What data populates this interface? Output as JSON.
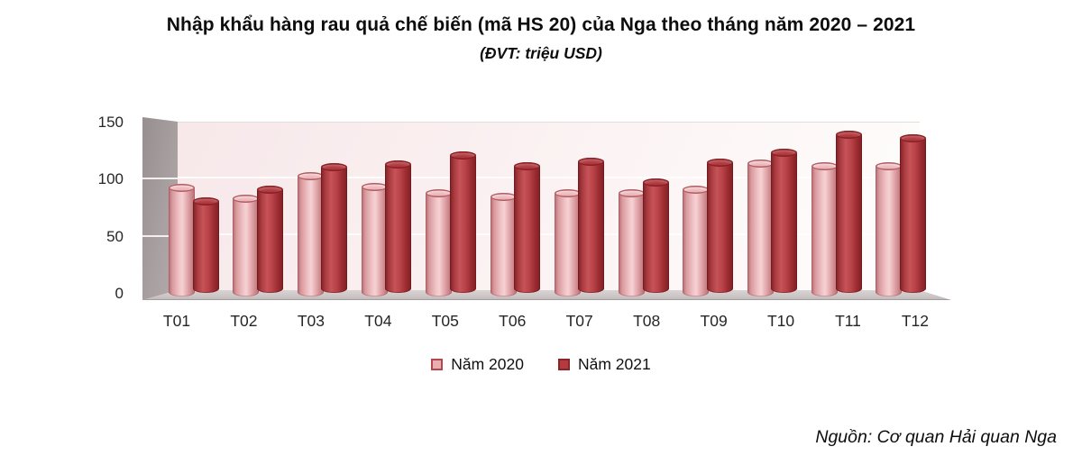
{
  "title": "Nhập khẩu hàng rau quả chế biến (mã HS 20) của Nga theo tháng năm 2020 – 2021",
  "subtitle": "(ĐVT: triệu USD)",
  "source": "Nguồn: Cơ quan Hải quan Nga",
  "colors": {
    "series_2020": "#e9aeb2",
    "series_2021": "#b23b40",
    "side_wall": "#a49c9d",
    "floor": "#ccc6c6",
    "plot_background": "#f9edee"
  },
  "chart_data": {
    "type": "bar",
    "style": "3d-cylinder",
    "title": "Nhập khẩu hàng rau quả chế biến (mã HS 20) của Nga theo tháng năm 2020 – 2021",
    "unit_label": "(ĐVT: triệu USD)",
    "categories": [
      "T01",
      "T02",
      "T03",
      "T04",
      "T05",
      "T06",
      "T07",
      "T08",
      "T09",
      "T10",
      "T11",
      "T12"
    ],
    "series": [
      {
        "name": "Năm 2020",
        "color": "#e9aeb2",
        "values": [
          94,
          85,
          104,
          95,
          89,
          86,
          89,
          89,
          92,
          115,
          112,
          112
        ]
      },
      {
        "name": "Năm 2021",
        "color": "#b23b40",
        "values": [
          81,
          91,
          110,
          112,
          120,
          111,
          115,
          97,
          114,
          122,
          138,
          135
        ]
      }
    ],
    "xlabel": "",
    "ylabel": "",
    "ylim": [
      0,
      150
    ],
    "yticks": [
      0,
      50,
      100,
      150
    ],
    "grid": true,
    "legend_position": "bottom"
  }
}
